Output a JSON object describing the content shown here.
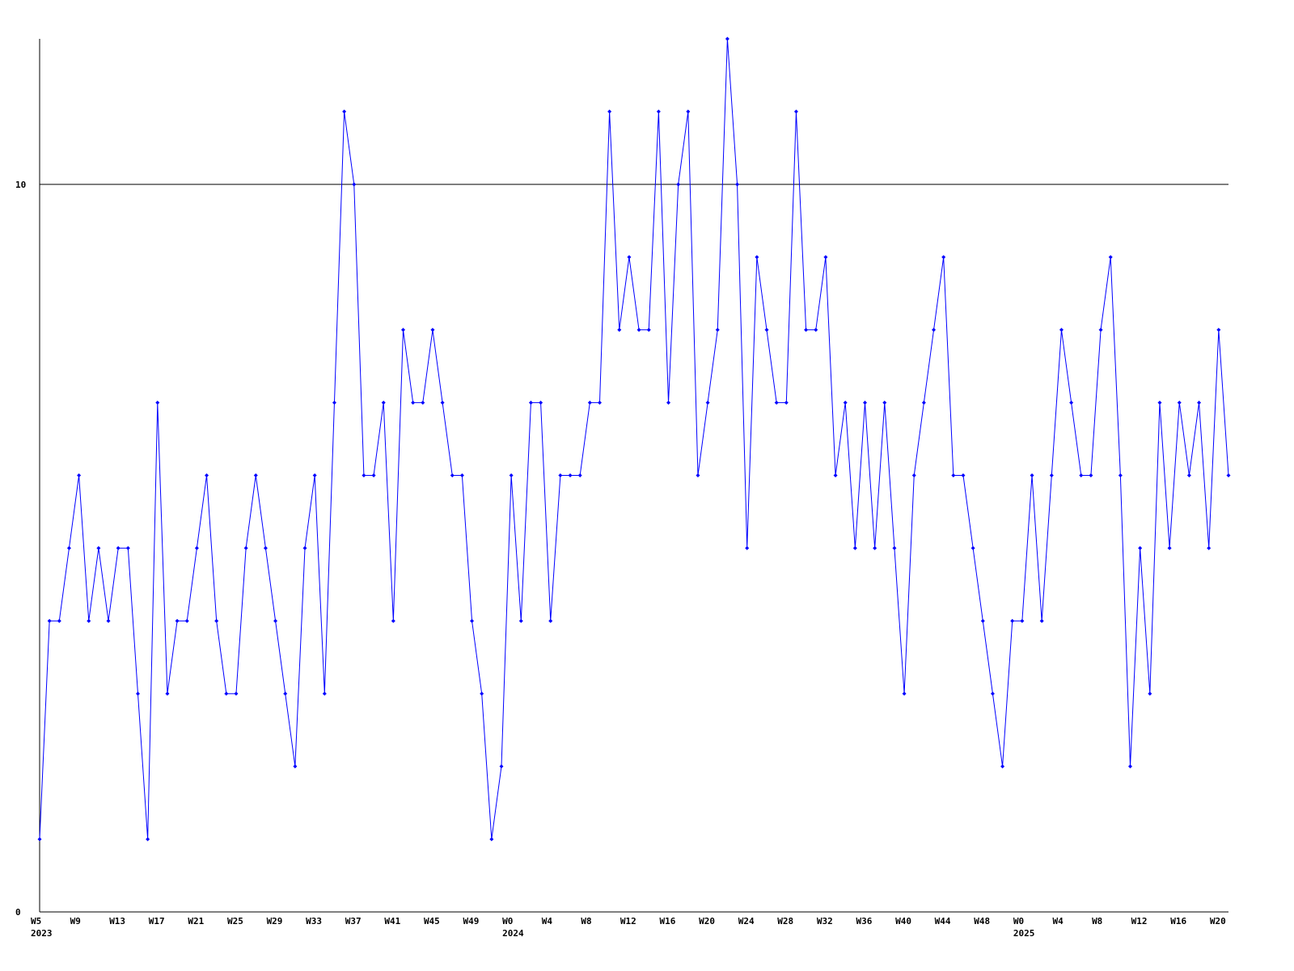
{
  "chart_data": {
    "type": "line",
    "categories": [
      "W5",
      null,
      null,
      null,
      "W9",
      null,
      null,
      null,
      "W13",
      null,
      null,
      null,
      "W17",
      null,
      null,
      null,
      "W21",
      null,
      null,
      null,
      "W25",
      null,
      null,
      null,
      "W29",
      null,
      null,
      null,
      "W33",
      null,
      null,
      null,
      "W37",
      null,
      null,
      null,
      "W41",
      null,
      null,
      null,
      "W45",
      null,
      null,
      null,
      "W49",
      null,
      null,
      null,
      "W0",
      null,
      null,
      null,
      "W4",
      null,
      null,
      null,
      "W8",
      null,
      null,
      null,
      "W12",
      null,
      null,
      null,
      "W16",
      null,
      null,
      null,
      "W20",
      null,
      null,
      null,
      "W24",
      null,
      null,
      null,
      "W28",
      null,
      null,
      null,
      "W32",
      null,
      null,
      null,
      "W36",
      null,
      null,
      null,
      "W40",
      null,
      null,
      null,
      "W44",
      null,
      null,
      null,
      "W48",
      null,
      null,
      null,
      "W0",
      null,
      null,
      null,
      "W4",
      null,
      null,
      null,
      "W8",
      null,
      null,
      null,
      "W12",
      null,
      null,
      null,
      "W16",
      null,
      null,
      null,
      "W20",
      null
    ],
    "year_labels": [
      "2023",
      null,
      null,
      null,
      null,
      null,
      null,
      null,
      null,
      null,
      null,
      null,
      null,
      null,
      null,
      null,
      null,
      null,
      null,
      null,
      null,
      null,
      null,
      null,
      null,
      null,
      null,
      null,
      null,
      null,
      null,
      null,
      null,
      null,
      null,
      null,
      null,
      null,
      null,
      null,
      null,
      null,
      null,
      null,
      null,
      null,
      null,
      null,
      "2024",
      null,
      null,
      null,
      null,
      null,
      null,
      null,
      null,
      null,
      null,
      null,
      null,
      null,
      null,
      null,
      null,
      null,
      null,
      null,
      null,
      null,
      null,
      null,
      null,
      null,
      null,
      null,
      null,
      null,
      null,
      null,
      null,
      null,
      null,
      null,
      null,
      null,
      null,
      null,
      null,
      null,
      null,
      null,
      null,
      null,
      null,
      null,
      null,
      null,
      null,
      null,
      "2025",
      null,
      null,
      null,
      null,
      null,
      null,
      null,
      null,
      null,
      null,
      null,
      null,
      null,
      null,
      null,
      null,
      null,
      null,
      null,
      null,
      null
    ],
    "series": [
      {
        "color": "#0000ff",
        "values": [
          1,
          4,
          4,
          5,
          6,
          4,
          5,
          4,
          5,
          5,
          3,
          1,
          7,
          3,
          4,
          4,
          5,
          6,
          4,
          3,
          3,
          5,
          6,
          5,
          4,
          3,
          2,
          5,
          6,
          3,
          7,
          11,
          10,
          6,
          6,
          7,
          4,
          8,
          7,
          7,
          8,
          7,
          6,
          6,
          4,
          3,
          1,
          2,
          6,
          4,
          7,
          7,
          4,
          6,
          6,
          6,
          7,
          7,
          11,
          8,
          9,
          8,
          8,
          11,
          7,
          10,
          11,
          6,
          7,
          8,
          12,
          10,
          5,
          9,
          8,
          7,
          7,
          11,
          8,
          8,
          9,
          6,
          7,
          5,
          7,
          5,
          7,
          5,
          3,
          6,
          7,
          8,
          9,
          6,
          6,
          5,
          4,
          3,
          2,
          4,
          4,
          6,
          4,
          6,
          8,
          7,
          6,
          6,
          8,
          9,
          6,
          2,
          5,
          3,
          7,
          5,
          7,
          6,
          7,
          5,
          8,
          6
        ]
      }
    ],
    "ylim": [
      0,
      12
    ],
    "yticks": [
      0,
      10
    ],
    "grid": true
  }
}
